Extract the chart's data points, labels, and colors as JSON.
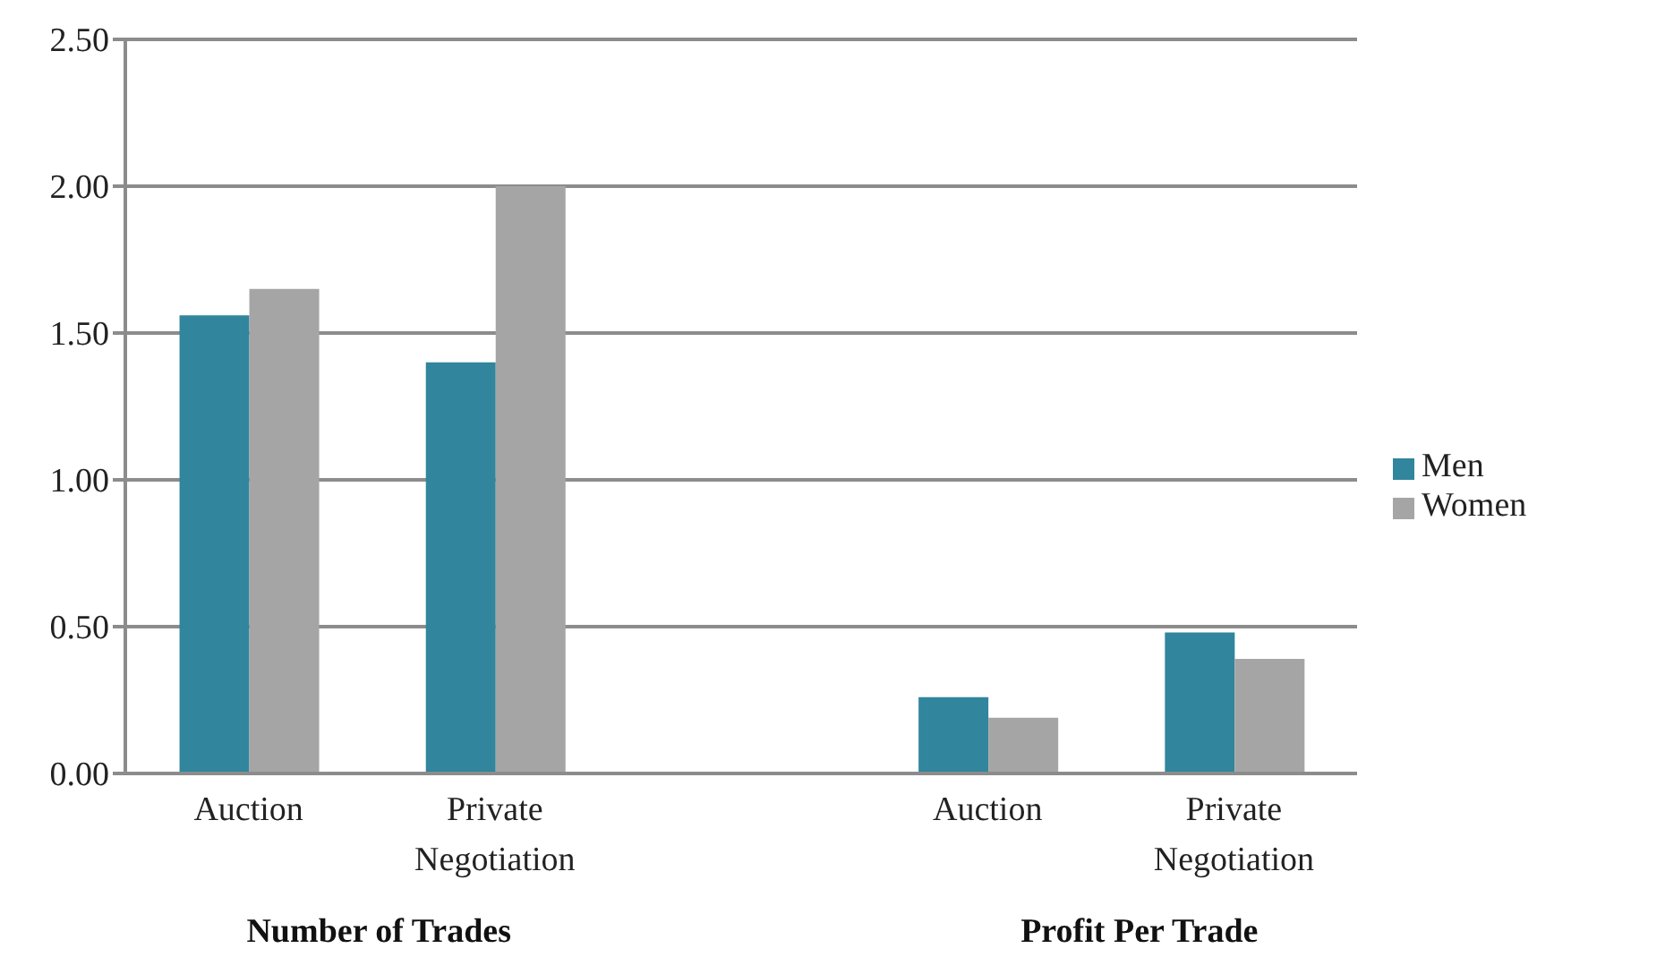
{
  "chart_data": {
    "type": "bar",
    "categories": [
      "Auction",
      "Private Negotiation",
      null,
      "Auction",
      "Private Negotiation"
    ],
    "series": [
      {
        "name": "Men",
        "color": "#31859c",
        "values": [
          1.56,
          1.4,
          null,
          0.26,
          0.48
        ]
      },
      {
        "name": "Women",
        "color": "#a5a5a5",
        "values": [
          1.65,
          2.0,
          null,
          0.19,
          0.39
        ]
      }
    ],
    "ylim": [
      0,
      2.5
    ],
    "yticks": [
      {
        "value": 0,
        "label": "0.00"
      },
      {
        "value": 0.5,
        "label": "0.50"
      },
      {
        "value": 1,
        "label": "1.00"
      },
      {
        "value": 1.5,
        "label": "1.50"
      },
      {
        "value": 2,
        "label": "2.00"
      },
      {
        "value": 2.5,
        "label": "2.50"
      }
    ],
    "grid": "y",
    "legend": "right",
    "annotations": [
      "Number of Trades",
      "Profit Per Trade"
    ]
  }
}
